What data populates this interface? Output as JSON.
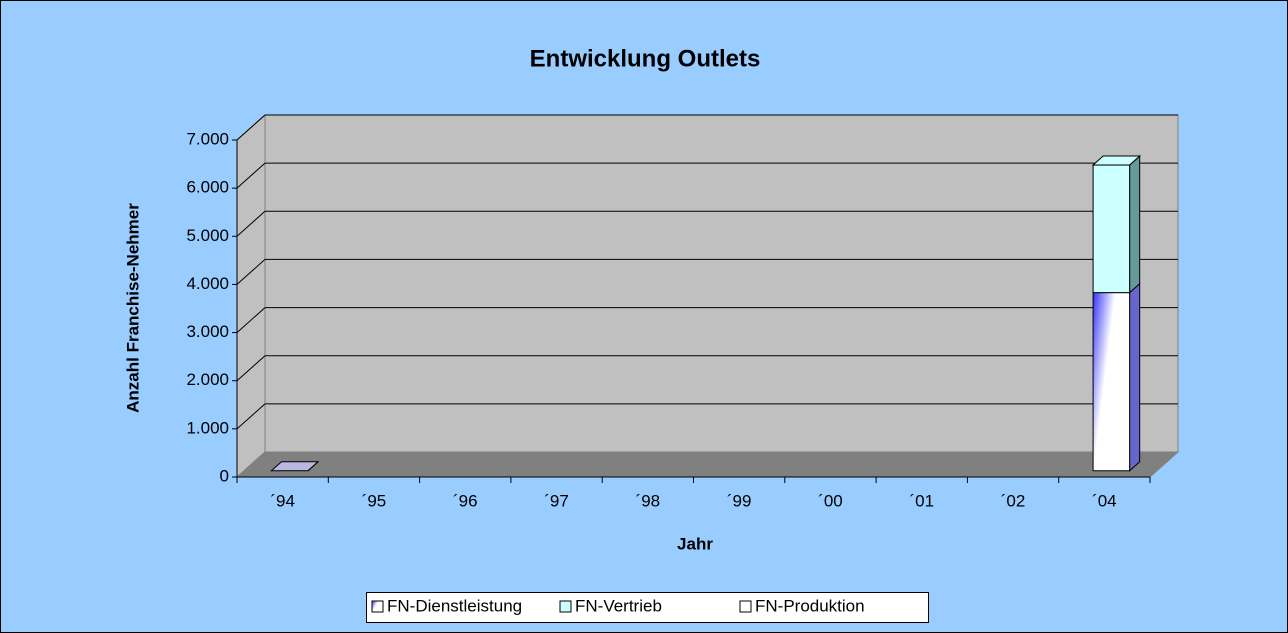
{
  "chart_data": {
    "type": "bar3d_stacked",
    "title": "Entwicklung Outlets",
    "x_label": "Jahr",
    "y_label": "Anzahl Franchise-Nehmer",
    "categories": [
      "´94",
      "´95",
      "´96",
      "´97",
      "´98",
      "´99",
      "´00",
      "´01",
      "´02",
      "´04"
    ],
    "series": [
      {
        "name": "FN-Dienstleistung",
        "color": "#3333ff",
        "values": [
          0,
          null,
          null,
          null,
          null,
          null,
          null,
          null,
          null,
          3700
        ]
      },
      {
        "name": "FN-Vertrieb",
        "color": "#ccffff",
        "values": [
          0,
          null,
          null,
          null,
          null,
          null,
          null,
          null,
          null,
          2650
        ]
      },
      {
        "name": "FN-Produktion",
        "color": "#ffffff",
        "values": [
          0,
          null,
          null,
          null,
          null,
          null,
          null,
          null,
          null,
          0
        ]
      }
    ],
    "ylim": [
      0,
      7000
    ],
    "yticks": [
      0,
      {
        "value": 1000,
        "label": "1.000"
      },
      {
        "value": 2000,
        "label": "2.000"
      },
      {
        "value": 3000,
        "label": "3.000"
      },
      {
        "value": 4000,
        "label": "4.000"
      },
      {
        "value": 5000,
        "label": "5.000"
      },
      {
        "value": 6000,
        "label": "6.000"
      },
      {
        "value": 7000,
        "label": "7.000"
      }
    ],
    "grid": true,
    "legend": "bottom"
  }
}
